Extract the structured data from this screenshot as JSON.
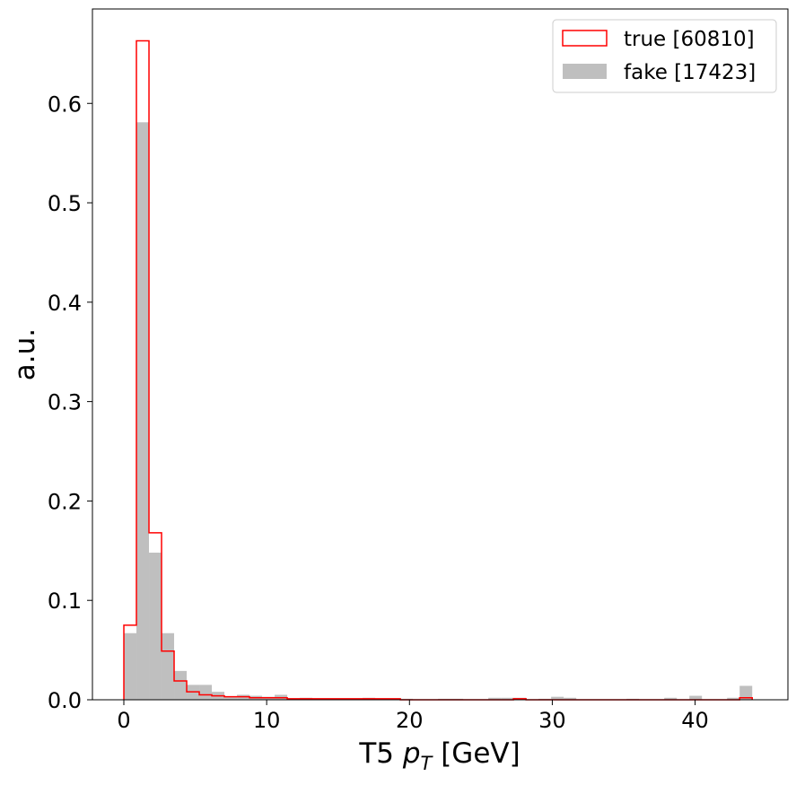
{
  "chart_data": {
    "type": "bar",
    "xlabel": "T5 p_T [GeV]",
    "xlabel_main": "T5 ",
    "xlabel_symbol": "p",
    "xlabel_subscript": "T",
    "xlabel_unit": " [GeV]",
    "ylabel": "a.u.",
    "xlim": [
      -2.2,
      46.5
    ],
    "ylim": [
      0,
      0.695
    ],
    "x_ticks": [
      0,
      10,
      20,
      30,
      40
    ],
    "x_tick_labels": [
      "0",
      "10",
      "20",
      "30",
      "40"
    ],
    "y_ticks": [
      0.0,
      0.1,
      0.2,
      0.3,
      0.4,
      0.5,
      0.6
    ],
    "y_tick_labels": [
      "0.0",
      "0.1",
      "0.2",
      "0.3",
      "0.4",
      "0.5",
      "0.6"
    ],
    "grid": false,
    "legend_position": "top-right",
    "bin_edges": [
      0.0,
      0.88,
      1.76,
      2.64,
      3.52,
      4.4,
      5.28,
      6.16,
      7.04,
      7.92,
      8.8,
      9.68,
      10.56,
      11.44,
      12.32,
      13.2,
      14.08,
      14.96,
      15.84,
      16.72,
      17.6,
      18.48,
      19.36,
      20.24,
      21.12,
      22.0,
      22.88,
      23.76,
      24.64,
      25.52,
      26.4,
      27.28,
      28.16,
      29.04,
      29.92,
      30.8,
      31.68,
      32.56,
      33.44,
      34.32,
      35.2,
      36.08,
      36.96,
      37.84,
      38.72,
      39.6,
      40.48,
      41.36,
      42.24,
      43.12,
      44.0
    ],
    "series": [
      {
        "name": "true [60810]",
        "style": "step",
        "color": "#ff0000",
        "values": [
          0.075,
          0.663,
          0.168,
          0.049,
          0.019,
          0.008,
          0.005,
          0.004,
          0.003,
          0.003,
          0.002,
          0.002,
          0.002,
          0.001,
          0.001,
          0.001,
          0.001,
          0.001,
          0.001,
          0.001,
          0.001,
          0.001,
          0.0,
          0.0,
          0.0,
          0.0,
          0.0,
          0.0,
          0.0,
          0.0,
          0.0,
          0.001,
          0.0,
          0.0,
          0.0,
          0.0,
          0.0,
          0.0,
          0.0,
          0.0,
          0.0,
          0.0,
          0.0,
          0.0,
          0.0,
          0.0,
          0.0,
          0.0,
          0.0,
          0.002
        ]
      },
      {
        "name": "fake [17423]",
        "style": "filled",
        "color": "#bfbfbf",
        "values": [
          0.067,
          0.581,
          0.148,
          0.067,
          0.029,
          0.015,
          0.015,
          0.008,
          0.003,
          0.005,
          0.004,
          0.003,
          0.005,
          0.001,
          0.002,
          0.0,
          0.001,
          0.001,
          0.0,
          0.002,
          0.001,
          0.001,
          0.001,
          0.0,
          0.0,
          0.001,
          0.001,
          0.0,
          0.0,
          0.002,
          0.002,
          0.002,
          0.0,
          0.001,
          0.003,
          0.002,
          0.0,
          0.0,
          0.0,
          0.0,
          0.001,
          0.0,
          0.0,
          0.002,
          0.0,
          0.004,
          0.0,
          0.0,
          0.002,
          0.014
        ]
      }
    ]
  }
}
